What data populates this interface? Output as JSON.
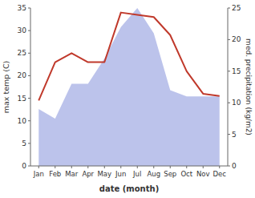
{
  "chart_data": {
    "type": "line",
    "categories": [
      "Jan",
      "Feb",
      "Mar",
      "Apr",
      "May",
      "Jun",
      "Jul",
      "Aug",
      "Sep",
      "Oct",
      "Nov",
      "Dec"
    ],
    "xlabel": "date (month)",
    "ylabel": "max temp (C)",
    "y2label": "med. precipitation (kg/m2)",
    "series": [
      {
        "type": "area",
        "axis": "y2",
        "color": "#b0b8e8",
        "values": [
          9.0,
          7.5,
          13.0,
          13.0,
          17.0,
          22.0,
          25.0,
          21.0,
          12.0,
          11.0,
          11.0,
          11.0
        ]
      },
      {
        "type": "line",
        "color": "#c0392b",
        "values": [
          14.5,
          23.0,
          25.0,
          23.0,
          23.0,
          34.0,
          33.5,
          33.0,
          29.0,
          21.0,
          16.0,
          15.5
        ]
      }
    ],
    "ylim": [
      0,
      35
    ],
    "yticks": [
      0,
      5,
      10,
      15,
      20,
      25,
      30,
      35
    ],
    "y2lim": [
      0,
      25
    ],
    "y2ticks": [
      0,
      5,
      10,
      15,
      20,
      25
    ],
    "grid": false
  }
}
